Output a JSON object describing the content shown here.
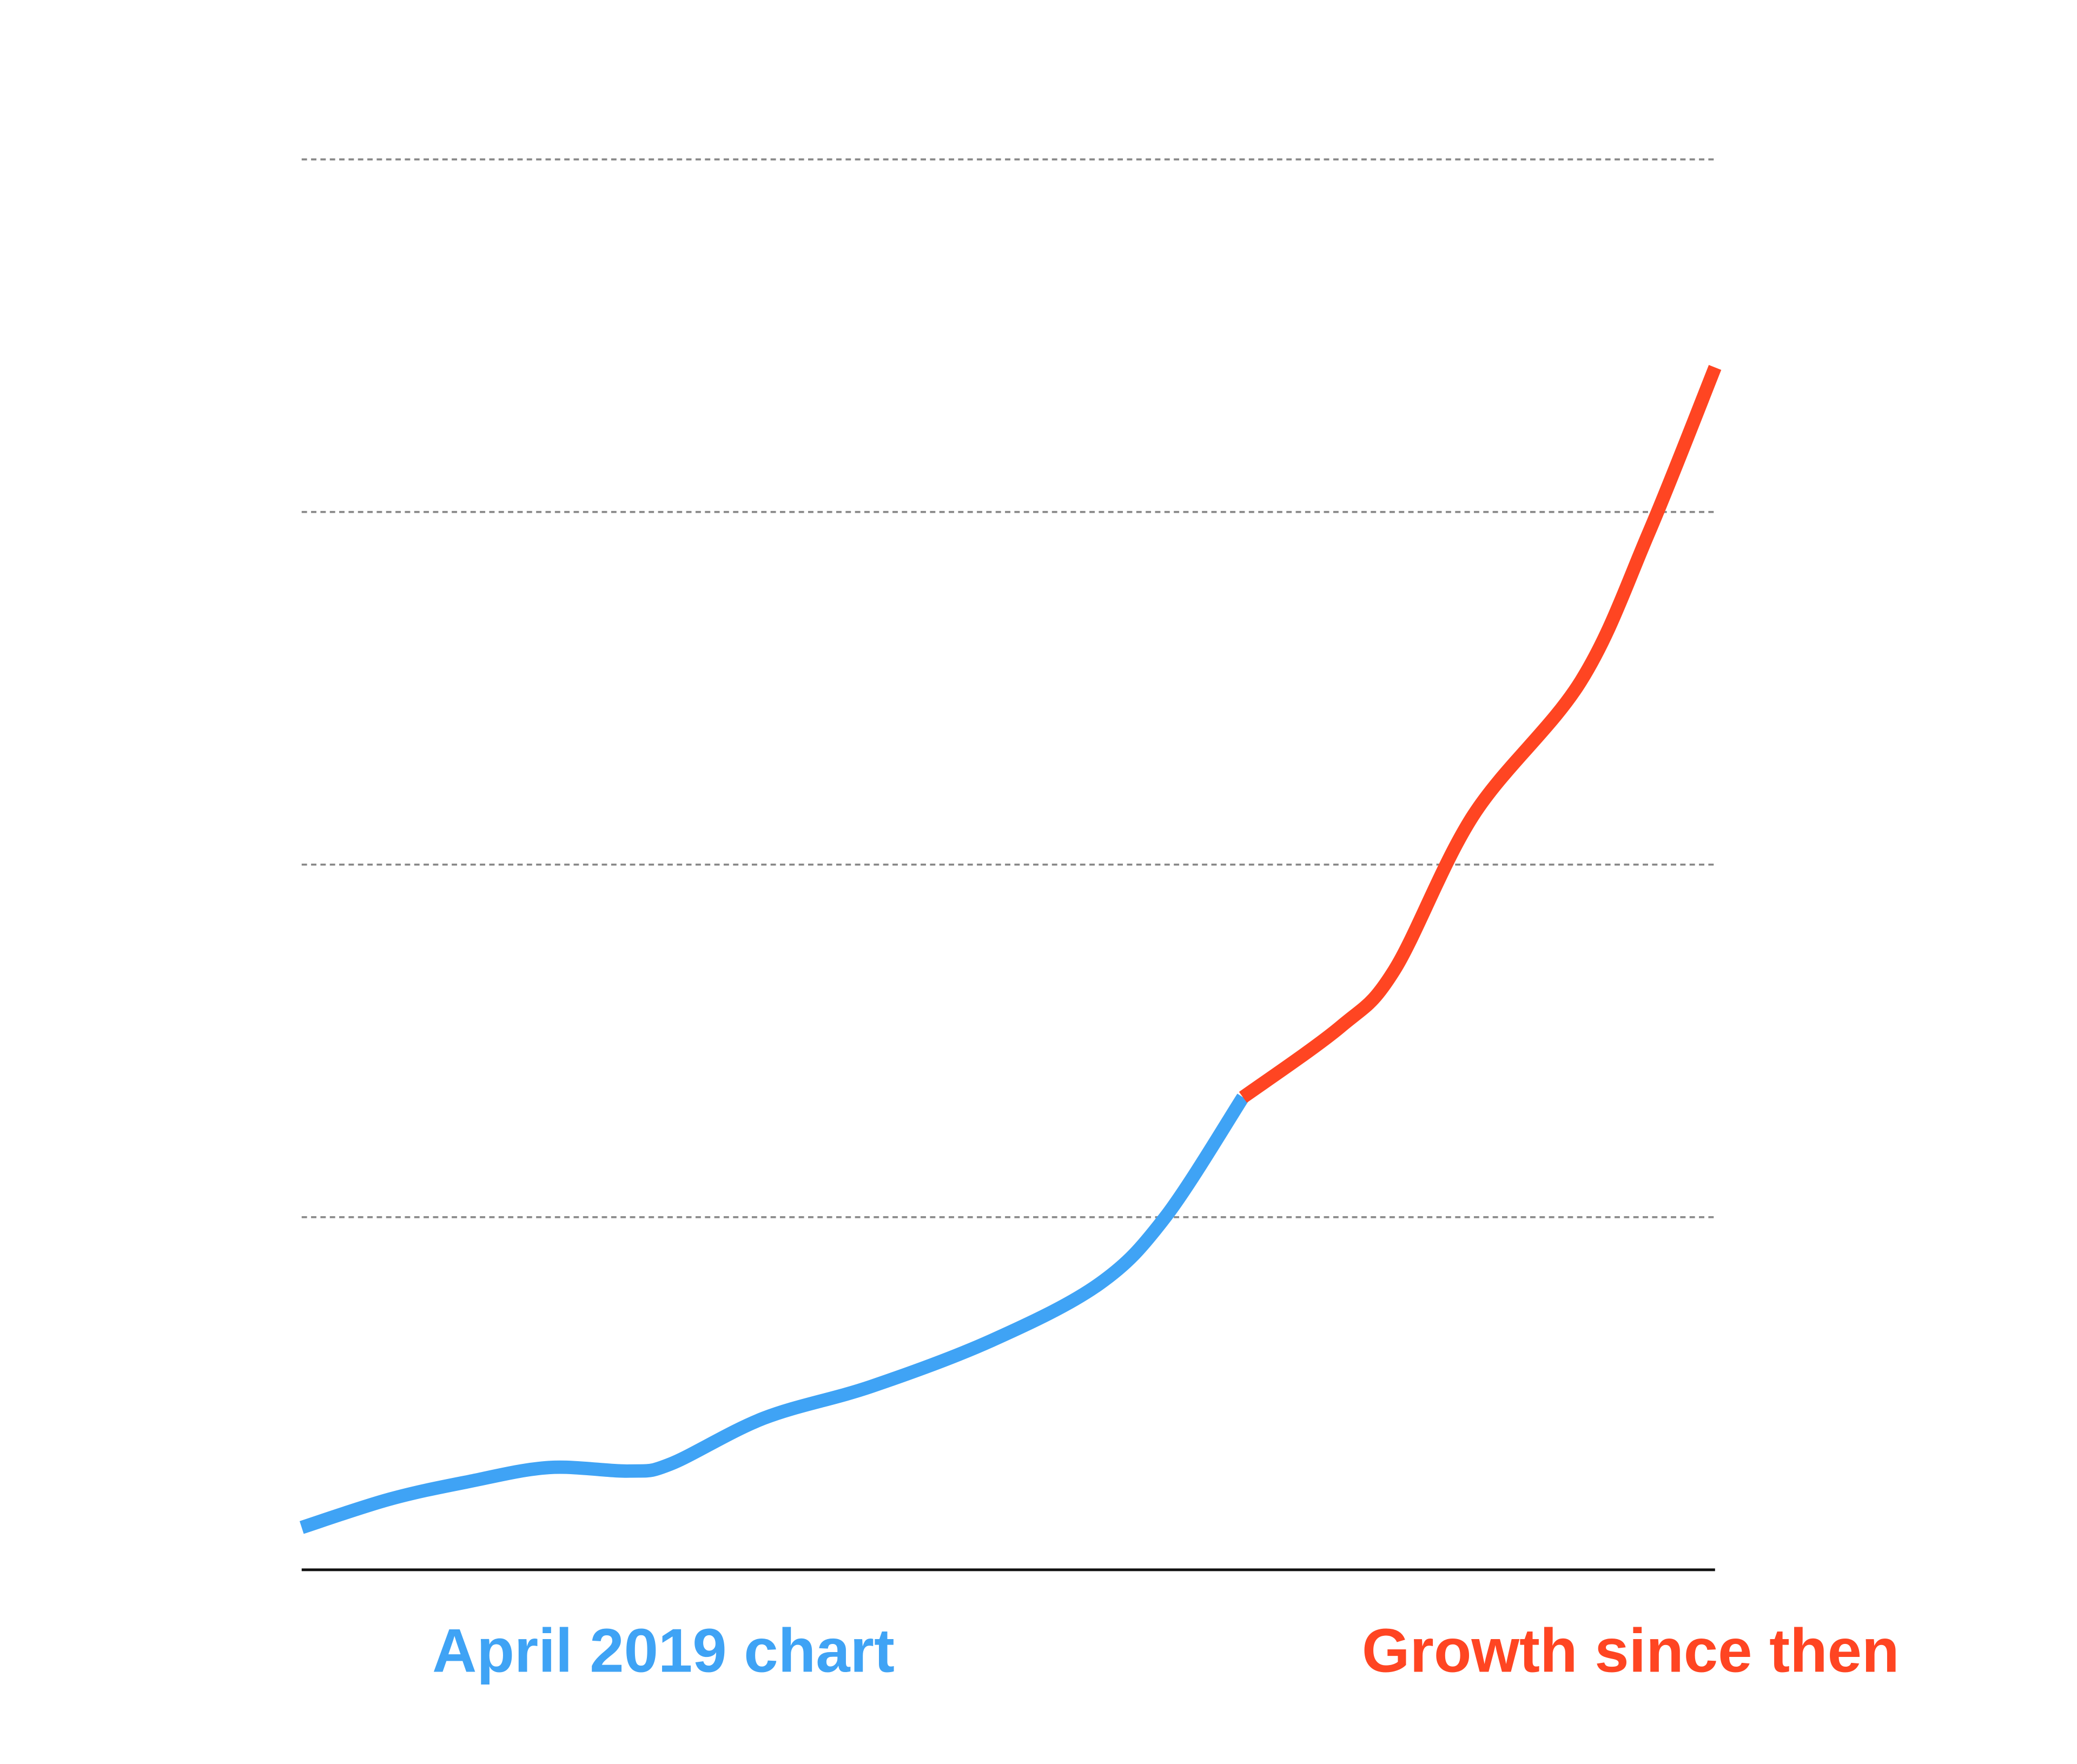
{
  "chart_data": {
    "type": "line",
    "xlim": [
      0,
      100
    ],
    "ylim": [
      0,
      4
    ],
    "yticks": [
      0,
      1,
      2,
      3,
      4
    ],
    "grid": true,
    "series": [
      {
        "name": "April 2019 chart",
        "color": "#3fa3f5",
        "x": [
          0,
          6.2,
          11.8,
          17.5,
          23.2,
          26.1,
          32.7,
          40.3,
          48.8,
          56.4,
          61.1,
          66.6
        ],
        "values": [
          0.12,
          0.2,
          0.25,
          0.29,
          0.28,
          0.3,
          0.43,
          0.52,
          0.65,
          0.81,
          1.0,
          1.34
        ]
      },
      {
        "name": "Growth since then",
        "color": "#ff4522",
        "x": [
          66.6,
          73.5,
          77.3,
          82.9,
          90.5,
          95.3,
          100
        ],
        "values": [
          1.34,
          1.54,
          1.7,
          2.14,
          2.52,
          2.94,
          3.41
        ]
      }
    ]
  }
}
